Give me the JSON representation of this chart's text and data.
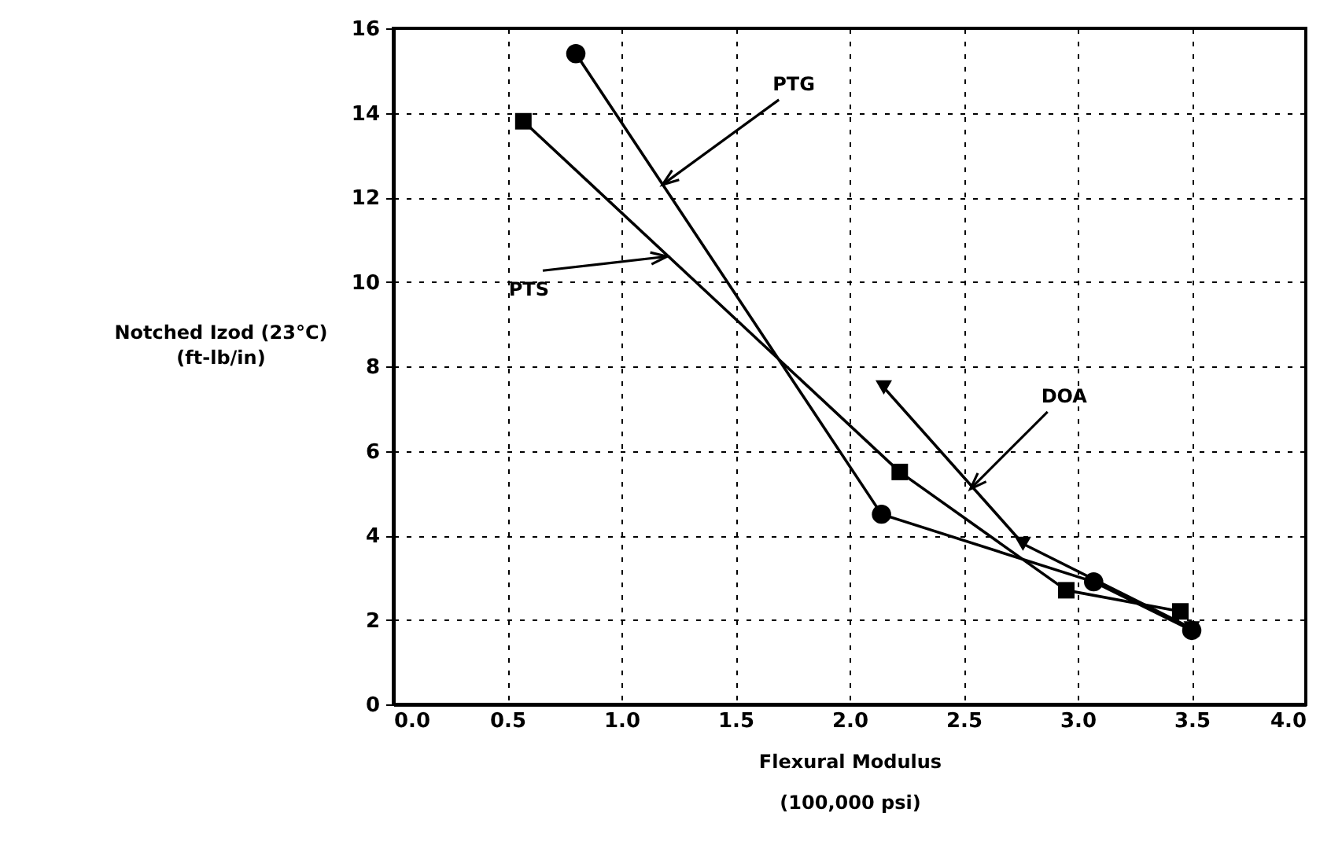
{
  "chart_data": {
    "type": "line",
    "xlabel": "Flexural Modulus\n(100,000 psi)",
    "ylabel": "Notched Izod (23°C)\n(ft-lb/in)",
    "xlim": [
      0,
      4
    ],
    "xticks": [
      {
        "value": 0,
        "label": "0.0"
      },
      {
        "value": 0.5,
        "label": "0.5"
      },
      {
        "value": 1,
        "label": "1.0"
      },
      {
        "value": 1.5,
        "label": "1.5"
      },
      {
        "value": 2,
        "label": "2.0"
      },
      {
        "value": 2.5,
        "label": "2.5"
      },
      {
        "value": 3,
        "label": "3.0"
      },
      {
        "value": 3.5,
        "label": "3.5"
      },
      {
        "value": 4,
        "label": "4.0"
      }
    ],
    "annotations": [
      {
        "text": "PTG",
        "x": 1.18,
        "y": 12.3
      },
      {
        "text": "PTS",
        "x": 1.2,
        "y": 10.6
      },
      {
        "text": "DOA",
        "x": 2.53,
        "y": 5.1
      }
    ],
    "ylim": [
      0,
      16
    ],
    "yticks": [
      0,
      2,
      4,
      6,
      8,
      10,
      12,
      14,
      16
    ],
    "grid": true,
    "legend": false,
    "line_style": "solid",
    "series": [
      {
        "color": "#000000",
        "marker": "circle",
        "x": [
          0.8,
          2.14,
          3.07,
          3.5
        ],
        "values": [
          15.4,
          4.5,
          2.9,
          1.75
        ]
      },
      {
        "color": "#000000",
        "marker": "square",
        "x": [
          0.57,
          2.22,
          2.95,
          3.45
        ],
        "values": [
          13.8,
          5.5,
          2.7,
          2.2
        ]
      },
      {
        "color": "#000000",
        "marker": "triangle",
        "x": [
          2.15,
          2.76,
          3.5
        ],
        "values": [
          7.5,
          3.8,
          1.8
        ]
      }
    ]
  }
}
